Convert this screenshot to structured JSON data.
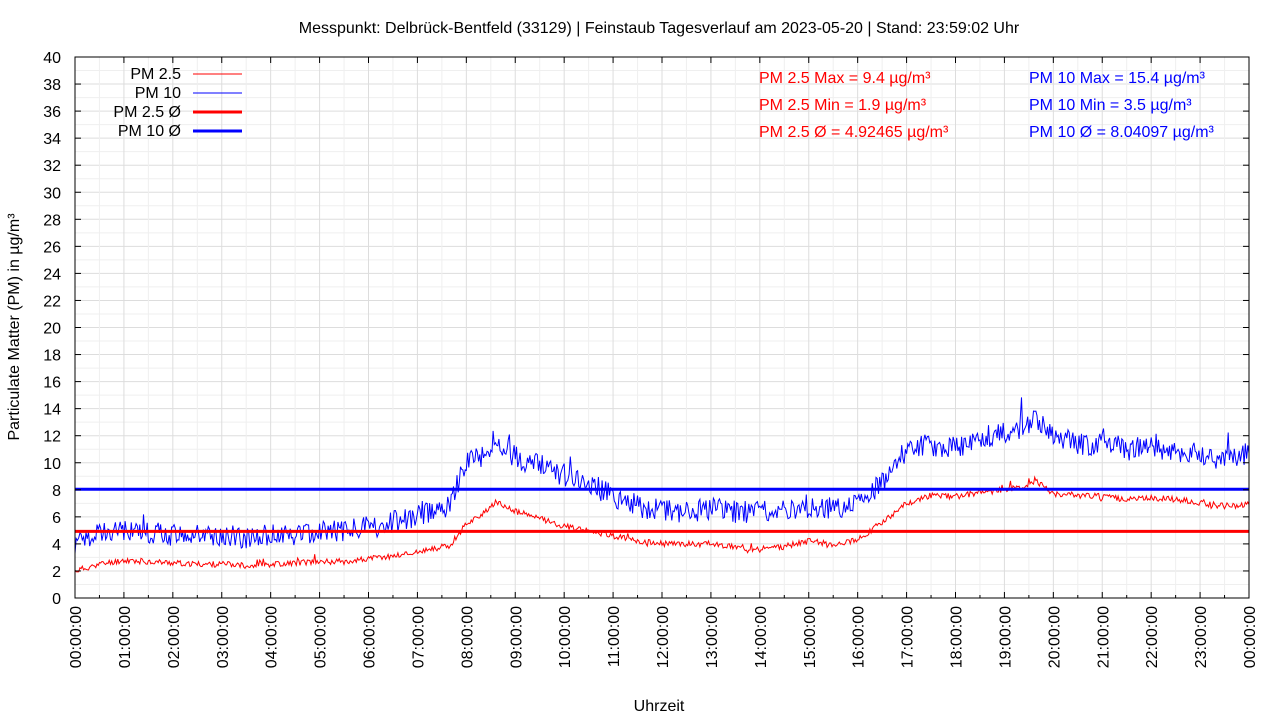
{
  "chart_data": {
    "type": "line",
    "title": "Messpunkt: Delbrück-Bentfeld (33129) | Feinstaub Tagesverlauf am 2023-05-20 | Stand: 23:59:02 Uhr",
    "xlabel": "Uhrzeit",
    "ylabel": "Particulate Matter (PM) in µg/m³",
    "ylim": [
      0,
      40
    ],
    "yticks": [
      0,
      2,
      4,
      6,
      8,
      10,
      12,
      14,
      16,
      18,
      20,
      22,
      24,
      26,
      28,
      30,
      32,
      34,
      36,
      38,
      40
    ],
    "xlim": [
      "00:00:00",
      "24:00:00"
    ],
    "xticks": [
      "00:00:00",
      "01:00:00",
      "02:00:00",
      "03:00:00",
      "04:00:00",
      "05:00:00",
      "06:00:00",
      "07:00:00",
      "08:00:00",
      "09:00:00",
      "10:00:00",
      "11:00:00",
      "12:00:00",
      "13:00:00",
      "14:00:00",
      "15:00:00",
      "16:00:00",
      "17:00:00",
      "18:00:00",
      "19:00:00",
      "20:00:00",
      "21:00:00",
      "22:00:00",
      "23:00:00",
      "00:00:00"
    ],
    "grid": true,
    "legend_position": "top-left",
    "x": [
      "00:00:00",
      "00:30:00",
      "01:00:00",
      "01:30:00",
      "02:00:00",
      "02:30:00",
      "03:00:00",
      "03:30:00",
      "04:00:00",
      "04:30:00",
      "05:00:00",
      "05:30:00",
      "06:00:00",
      "06:30:00",
      "07:00:00",
      "07:30:00",
      "07:40:00",
      "08:00:00",
      "08:30:00",
      "08:40:00",
      "09:00:00",
      "09:30:00",
      "10:00:00",
      "10:30:00",
      "11:00:00",
      "11:30:00",
      "12:00:00",
      "12:30:00",
      "13:00:00",
      "13:30:00",
      "14:00:00",
      "14:30:00",
      "15:00:00",
      "15:30:00",
      "16:00:00",
      "16:30:00",
      "17:00:00",
      "17:30:00",
      "18:00:00",
      "18:30:00",
      "19:00:00",
      "19:30:00",
      "19:40:00",
      "20:00:00",
      "20:30:00",
      "21:00:00",
      "21:30:00",
      "22:00:00",
      "22:30:00",
      "23:00:00",
      "23:30:00",
      "24:00:00"
    ],
    "series": [
      {
        "name": "PM 2.5",
        "color": "#ff0000",
        "values": [
          2.0,
          2.5,
          2.8,
          2.7,
          2.6,
          2.5,
          2.5,
          2.4,
          2.5,
          2.6,
          2.7,
          2.7,
          2.9,
          3.1,
          3.4,
          3.7,
          3.9,
          5.5,
          6.6,
          7.0,
          6.4,
          5.9,
          5.3,
          5.0,
          4.6,
          4.2,
          4.0,
          4.0,
          4.0,
          3.8,
          3.6,
          3.8,
          4.2,
          4.0,
          4.3,
          5.6,
          7.0,
          7.6,
          7.5,
          7.8,
          8.0,
          8.3,
          8.6,
          7.7,
          7.6,
          7.5,
          7.3,
          7.4,
          7.3,
          7.0,
          6.8,
          6.9
        ]
      },
      {
        "name": "PM 10",
        "color": "#0000ff",
        "values": [
          4.0,
          4.8,
          5.0,
          4.8,
          4.7,
          4.6,
          4.6,
          4.5,
          4.6,
          4.7,
          4.9,
          5.0,
          5.2,
          5.6,
          6.0,
          6.5,
          7.0,
          10.0,
          10.8,
          11.5,
          10.4,
          9.8,
          9.1,
          8.5,
          7.5,
          6.8,
          6.5,
          6.4,
          6.6,
          6.3,
          6.4,
          6.5,
          6.8,
          6.5,
          7.0,
          8.5,
          11.0,
          11.3,
          11.2,
          11.8,
          12.3,
          12.8,
          13.2,
          11.8,
          11.5,
          11.3,
          11.0,
          11.1,
          10.8,
          10.6,
          10.4,
          10.7
        ]
      }
    ],
    "averages": [
      {
        "name": "PM 2.5 Ø",
        "value": 4.92465,
        "color": "#ff0000"
      },
      {
        "name": "PM 10 Ø",
        "value": 8.04097,
        "color": "#0000ff"
      }
    ],
    "legend": [
      "PM 2.5",
      "PM 10",
      "PM 2.5 Ø",
      "PM 10 Ø"
    ],
    "annotations": {
      "pm25": [
        "PM 2.5 Max = 9.4 µg/m³",
        "PM 2.5 Min = 1.9 µg/m³",
        "PM 2.5 Ø = 4.92465 µg/m³"
      ],
      "pm10": [
        "PM 10 Max = 15.4 µg/m³",
        "PM 10 Min = 3.5 µg/m³",
        "PM 10 Ø = 8.04097 µg/m³"
      ]
    }
  }
}
